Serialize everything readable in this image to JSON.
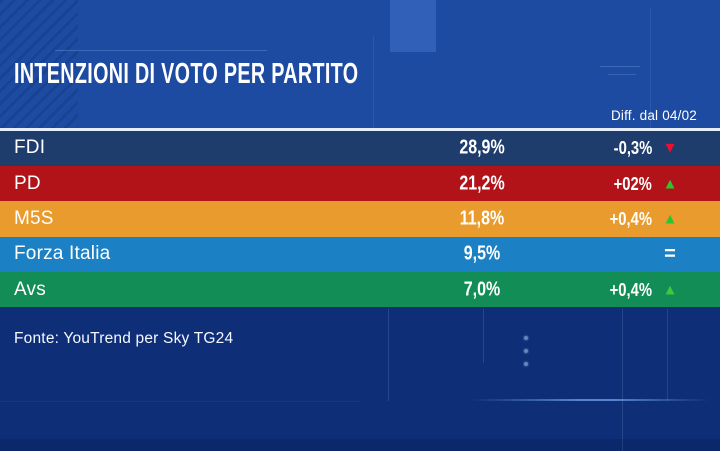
{
  "header": {
    "title": "INTENZIONI DI VOTO PER PARTITO",
    "diff_column_label": "Diff. dal 04/02"
  },
  "table": {
    "rows": [
      {
        "party": "FDI",
        "value": "28,9%",
        "diff": "-0,3%",
        "trend": "down",
        "icon": "▼",
        "icon_color": "#ea1130",
        "color": "#1e3d6d"
      },
      {
        "party": "PD",
        "value": "21,2%",
        "diff": "+02%",
        "trend": "up",
        "icon": "▲",
        "icon_color": "#2fc32f",
        "color": "#b11319"
      },
      {
        "party": "M5S",
        "value": "11,8%",
        "diff": "+0,4%",
        "trend": "up",
        "icon": "▲",
        "icon_color": "#2fc32f",
        "color": "#ea9b2d"
      },
      {
        "party": "Forza Italia",
        "value": "9,5%",
        "diff": "",
        "trend": "equal",
        "icon": "=",
        "icon_color": "#ffffff",
        "color": "#1b80c4"
      },
      {
        "party": "Avs",
        "value": "7,0%",
        "diff": "+0,4%",
        "trend": "up",
        "icon": "▲",
        "icon_color": "#3dc93d",
        "color": "#128d55"
      }
    ]
  },
  "footer": {
    "source": "Fonte: YouTrend per Sky TG24"
  },
  "colors": {
    "background_top": "#1e4ba2",
    "background_bottom": "#0f2e78",
    "separator": "#e6eefb",
    "title_text": "#ffffff"
  },
  "chart_data": {
    "type": "table",
    "title": "INTENZIONI DI VOTO PER PARTITO",
    "categories": [
      "FDI",
      "PD",
      "M5S",
      "Forza Italia",
      "Avs"
    ],
    "series": [
      {
        "name": "Intenzioni di voto (%)",
        "values": [
          28.9,
          21.2,
          11.8,
          9.5,
          7.0
        ]
      },
      {
        "name": "Diff. dal 04/02 (punti %)",
        "values": [
          -0.3,
          0.2,
          0.4,
          0.0,
          0.4
        ]
      }
    ],
    "trend_directions": [
      "down",
      "up",
      "up",
      "equal",
      "up"
    ],
    "source": "Fonte: YouTrend per Sky TG24"
  }
}
